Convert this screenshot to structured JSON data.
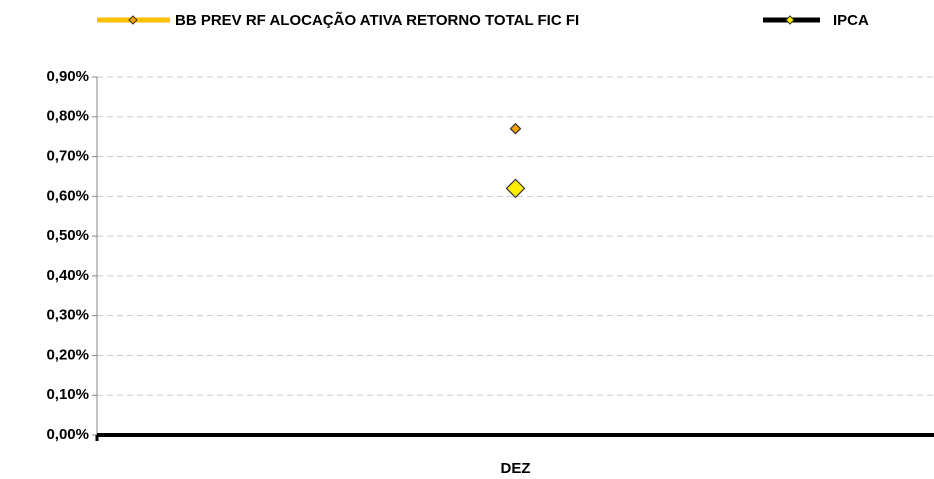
{
  "chart_data": {
    "type": "line",
    "categories": [
      "DEZ"
    ],
    "series": [
      {
        "name": "BB PREV RF ALOCAÇÃO ATIVA RETORNO TOTAL FIC FI",
        "color": "#FFC000",
        "marker_color": "#F5A200",
        "values": [
          0.77
        ]
      },
      {
        "name": "IPCA",
        "color": "#000000",
        "marker_color": "#FFEE00",
        "values": [
          0.62
        ]
      }
    ],
    "ylim": [
      0,
      0.9
    ],
    "yticks": [
      {
        "value": 0,
        "label": "0,00%"
      },
      {
        "value": 0.1,
        "label": "0,10%"
      },
      {
        "value": 0.2,
        "label": "0,20%"
      },
      {
        "value": 0.3,
        "label": "0,30%"
      },
      {
        "value": 0.4,
        "label": "0,40%"
      },
      {
        "value": 0.5,
        "label": "0,50%"
      },
      {
        "value": 0.6,
        "label": "0,60%"
      },
      {
        "value": 0.7,
        "label": "0,70%"
      },
      {
        "value": 0.8,
        "label": "0,80%"
      },
      {
        "value": 0.9,
        "label": "0,90%"
      }
    ],
    "grid": true,
    "legend": "top"
  }
}
